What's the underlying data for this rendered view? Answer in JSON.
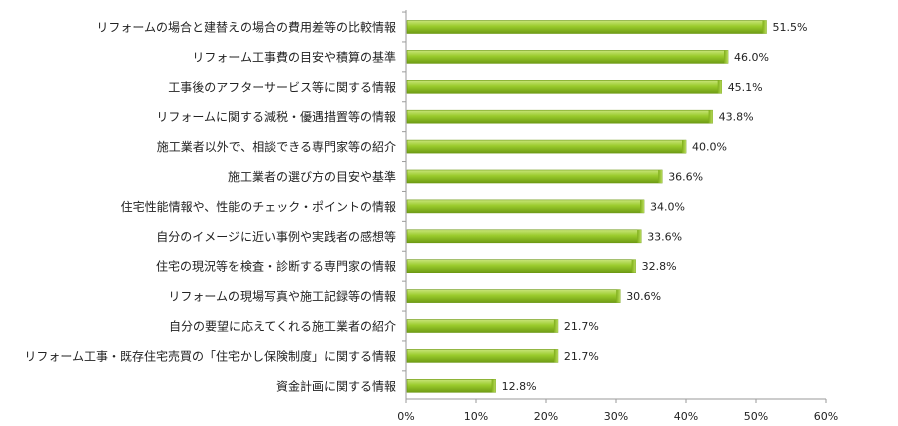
{
  "chart_data": {
    "type": "bar",
    "orientation": "horizontal",
    "title": "",
    "xlabel": "",
    "ylabel": "",
    "xlim": [
      0,
      60
    ],
    "xticks": [
      "0%",
      "10%",
      "20%",
      "30%",
      "40%",
      "50%",
      "60%"
    ],
    "grid": false,
    "legend": "none",
    "bar_color": "#8fbf21",
    "categories": [
      "リフォームの場合と建替えの場合の費用差等の比較情報",
      "リフォーム工事費の目安や積算の基準",
      "工事後のアフターサービス等に関する情報",
      "リフォームに関する減税・優遇措置等の情報",
      "施工業者以外で、相談できる専門家等の紹介",
      "施工業者の選び方の目安や基準",
      "住宅性能情報や、性能のチェック・ポイントの情報",
      "自分のイメージに近い事例や実践者の感想等",
      "住宅の現況等を検査・診断する専門家の情報",
      "リフォームの現場写真や施工記録等の情報",
      "自分の要望に応えてくれる施工業者の紹介",
      "リフォーム工事・既存住宅売買の「住宅かし保険制度」に関する情報",
      "資金計画に関する情報"
    ],
    "values": [
      51.5,
      46.0,
      45.1,
      43.8,
      40.0,
      36.6,
      34.0,
      33.6,
      32.8,
      30.6,
      21.7,
      21.7,
      12.8
    ],
    "value_labels": [
      "51.5%",
      "46.0%",
      "45.1%",
      "43.8%",
      "40.0%",
      "36.6%",
      "34.0%",
      "33.6%",
      "32.8%",
      "30.6%",
      "21.7%",
      "21.7%",
      "12.8%"
    ]
  }
}
